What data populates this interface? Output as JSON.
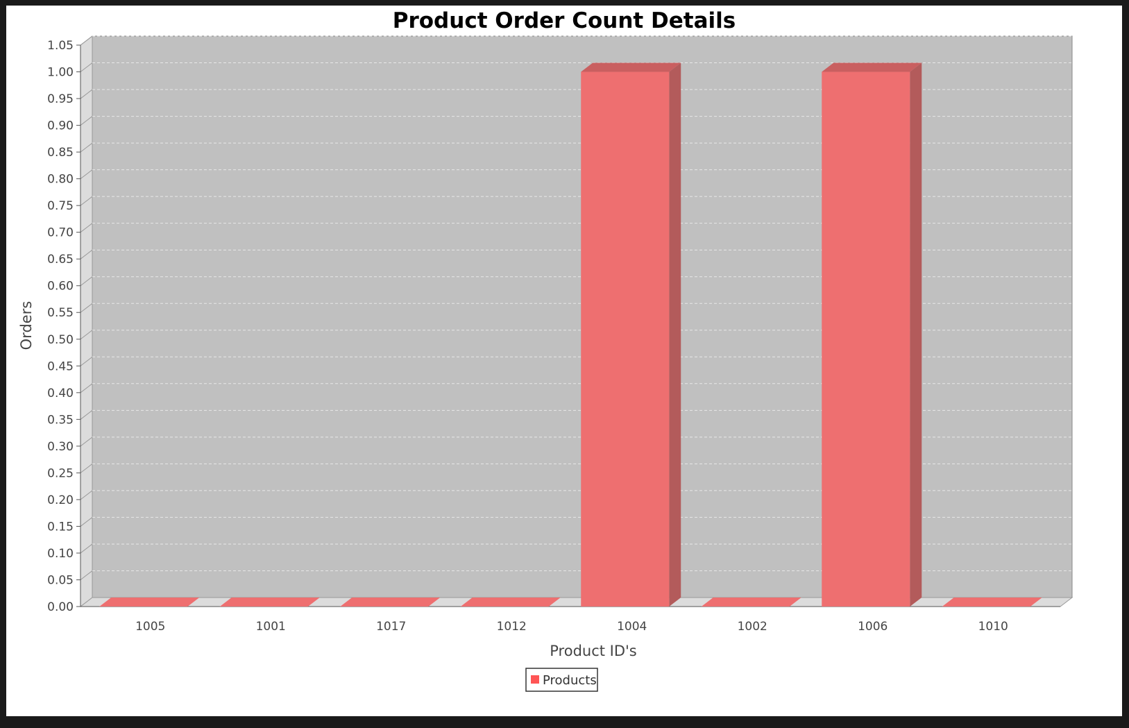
{
  "chart_data": {
    "type": "bar",
    "title": "Product Order Count Details",
    "xlabel": "Product ID's",
    "ylabel": "Orders",
    "categories": [
      "1005",
      "1001",
      "1017",
      "1012",
      "1004",
      "1002",
      "1006",
      "1010"
    ],
    "series": [
      {
        "name": "Products",
        "values": [
          0,
          0,
          0,
          0,
          1,
          0,
          1,
          0
        ]
      }
    ],
    "ylim": [
      0,
      1.05
    ],
    "y_ticks": [
      "0.00",
      "0.05",
      "0.10",
      "0.15",
      "0.20",
      "0.25",
      "0.30",
      "0.35",
      "0.40",
      "0.45",
      "0.50",
      "0.55",
      "0.60",
      "0.65",
      "0.70",
      "0.75",
      "0.80",
      "0.85",
      "0.90",
      "0.95",
      "1.00",
      "1.05"
    ],
    "grid": true,
    "three_d": true,
    "legend_position": "bottom-center",
    "colors": {
      "bar_front": "#ee6f70",
      "bar_side": "#b35b5b",
      "bar_top": "#c95f60",
      "plot_bg": "#c0c0c0",
      "wall": "#dcdcdc",
      "grid": "#e8e8e8",
      "legend_swatch": "#ff5555"
    }
  }
}
